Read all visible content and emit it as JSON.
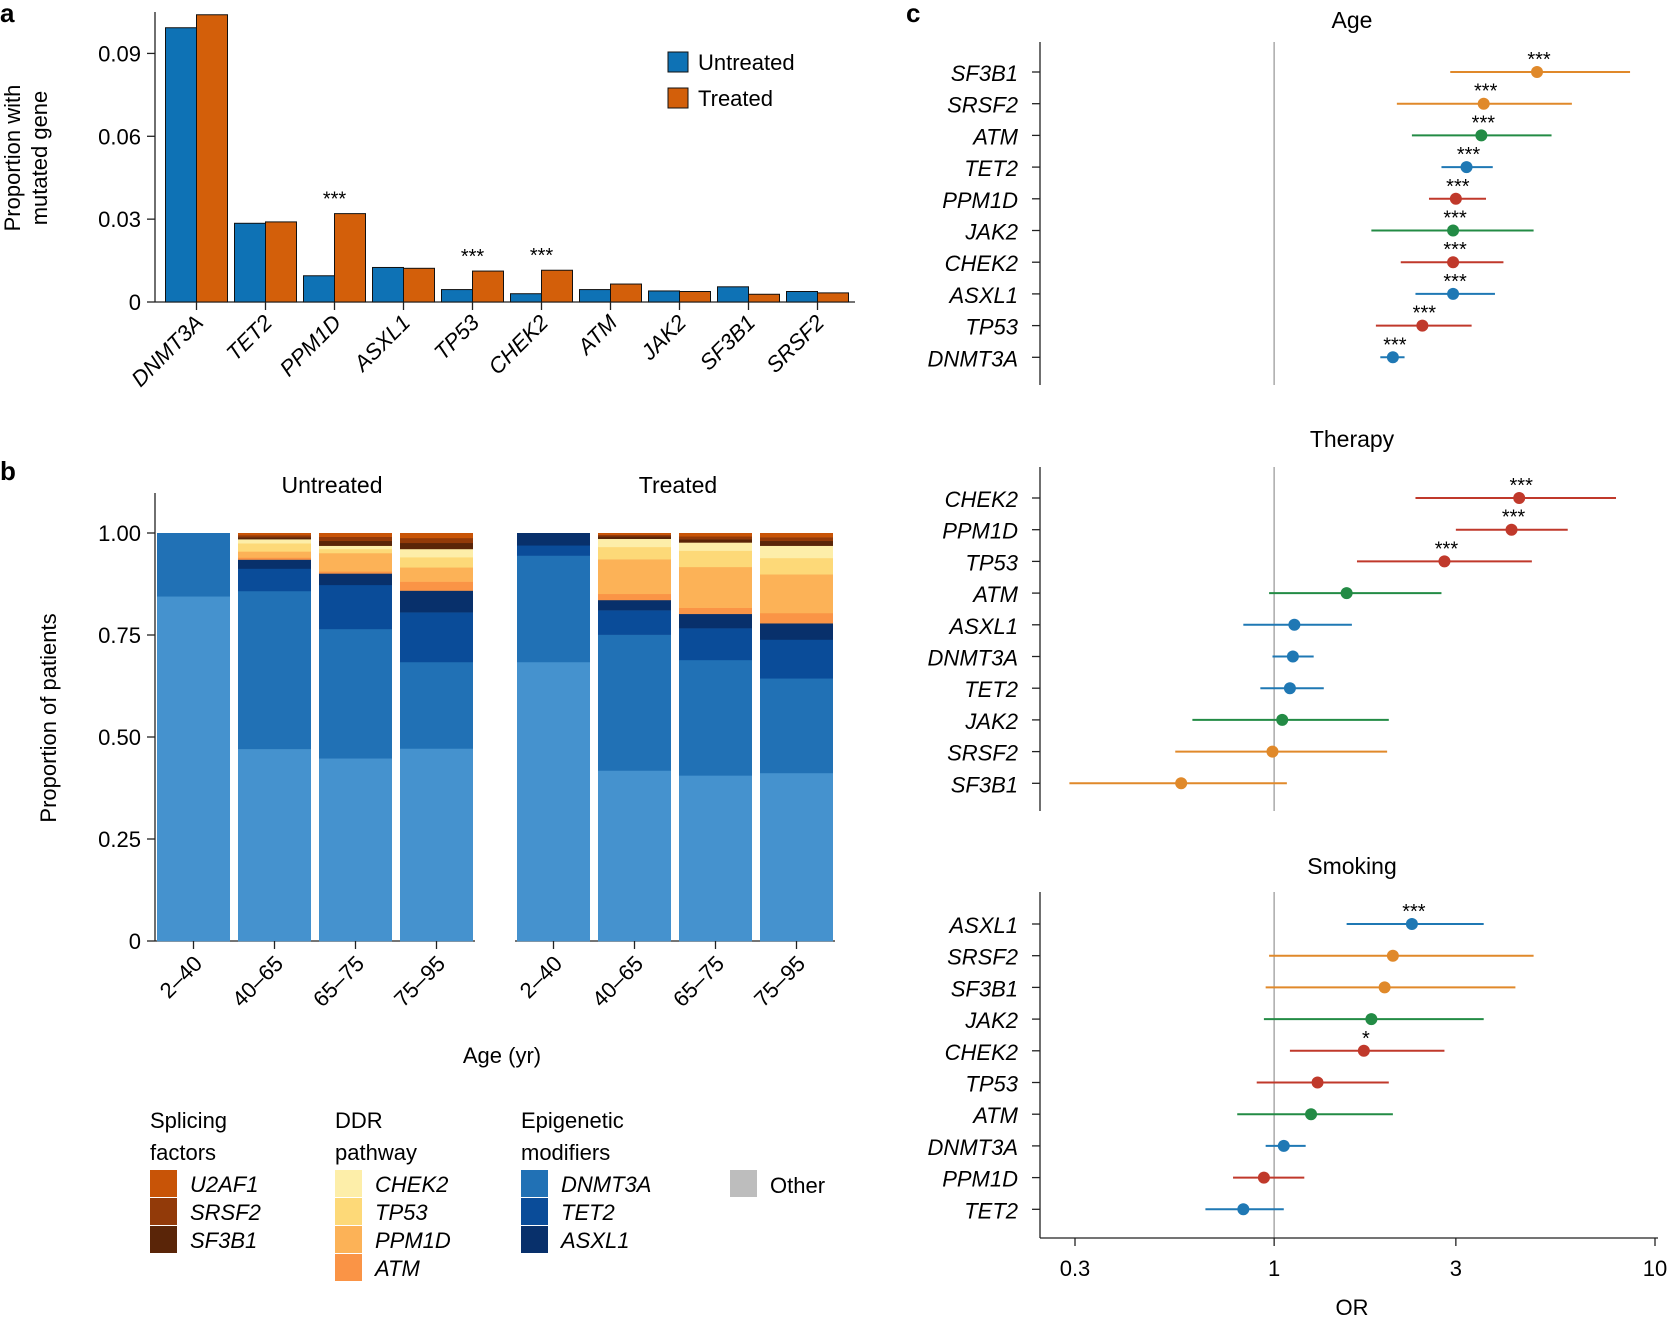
{
  "panels": {
    "a": "a",
    "b": "b",
    "c": "c"
  },
  "colors": {
    "untreated": "#0e72b5",
    "treated": "#d35f0a",
    "U2AF1": "#c85407",
    "SRSF2": "#923a09",
    "SF3B1": "#5a2508",
    "CHEK2": "#fdeea9",
    "TP53": "#fdd978",
    "PPM1D": "#fcb257",
    "ATM": "#fa9446",
    "DNMT3A": "#4592ce",
    "TET2": "#2171b5",
    "ASXL1": "#0a4c99",
    "ASXL1b": "#08306b",
    "Other": "#bdbdbd",
    "ci_orange": "#e0892a",
    "ci_green": "#238b45",
    "ci_blue": "#1f78b4",
    "ci_red": "#c0392b"
  },
  "chart_data": [
    {
      "id": "a",
      "type": "bar",
      "ylabel_lines": [
        "Proportion with",
        "mutated gene"
      ],
      "ylim": [
        0,
        0.105
      ],
      "yticks": [
        0,
        0.03,
        0.06,
        0.09
      ],
      "ytick_labels": [
        "0",
        "0.03",
        "0.06",
        "0.09"
      ],
      "categories": [
        "DNMT3A",
        "TET2",
        "PPM1D",
        "ASXL1",
        "TP53",
        "CHEK2",
        "ATM",
        "JAK2",
        "SF3B1",
        "SRSF2"
      ],
      "series": [
        {
          "name": "Untreated",
          "values": [
            0.0993,
            0.0285,
            0.0095,
            0.0125,
            0.0045,
            0.003,
            0.0045,
            0.004,
            0.0055,
            0.0038
          ]
        },
        {
          "name": "Treated",
          "values": [
            0.104,
            0.029,
            0.032,
            0.0122,
            0.0112,
            0.0115,
            0.0065,
            0.0038,
            0.0028,
            0.0033
          ]
        }
      ],
      "annotations": [
        {
          "category": "PPM1D",
          "text": "***"
        },
        {
          "category": "TP53",
          "text": "***"
        },
        {
          "category": "CHEK2",
          "text": "***"
        }
      ],
      "legend": [
        "Untreated",
        "Treated"
      ]
    },
    {
      "id": "b",
      "type": "bar",
      "stacked": true,
      "ylabel": "Proportion of patients",
      "xlabel": "Age (yr)",
      "ylim": [
        0,
        1.0
      ],
      "yticks": [
        0,
        0.25,
        0.5,
        0.75,
        1.0
      ],
      "ytick_labels": [
        "0",
        "0.25",
        "0.50",
        "0.75",
        "1.00"
      ],
      "groups": [
        "Untreated",
        "Treated"
      ],
      "categories": [
        "2–40",
        "40–65",
        "65–75",
        "75–95"
      ],
      "stack_order": [
        "DNMT3A",
        "TET2",
        "ASXL1",
        "ASXL1b",
        "ATM",
        "PPM1D",
        "TP53",
        "CHEK2",
        "SF3B1",
        "SRSF2",
        "U2AF1"
      ],
      "stacks": {
        "Untreated": [
          [
            0.845,
            0.155,
            0,
            0,
            0,
            0,
            0,
            0,
            0,
            0,
            0
          ],
          [
            0.471,
            0.387,
            0.055,
            0.022,
            0.005,
            0.015,
            0.02,
            0.01,
            0.005,
            0.005,
            0.005
          ],
          [
            0.448,
            0.317,
            0.108,
            0.028,
            0.005,
            0.045,
            0.01,
            0.008,
            0.012,
            0.01,
            0.009
          ],
          [
            0.472,
            0.212,
            0.122,
            0.053,
            0.022,
            0.035,
            0.025,
            0.02,
            0.015,
            0.012,
            0.012
          ]
        ],
        "Treated": [
          [
            0.684,
            0.261,
            0.025,
            0.03,
            0,
            0,
            0,
            0,
            0,
            0,
            0
          ],
          [
            0.418,
            0.333,
            0.06,
            0.025,
            0.015,
            0.085,
            0.03,
            0.02,
            0.006,
            0.004,
            0.004
          ],
          [
            0.406,
            0.283,
            0.078,
            0.035,
            0.015,
            0.1,
            0.04,
            0.02,
            0.008,
            0.007,
            0.008
          ],
          [
            0.412,
            0.232,
            0.095,
            0.04,
            0.025,
            0.095,
            0.04,
            0.03,
            0.012,
            0.009,
            0.01
          ]
        ]
      }
    },
    {
      "id": "c",
      "type": "scatter",
      "subtype": "forest",
      "xlabel": "OR",
      "xscale": "log",
      "xlim": [
        0.25,
        10
      ],
      "xticks": [
        0.3,
        1,
        3,
        10
      ],
      "xtick_labels": [
        "0.3",
        "1",
        "3",
        "10"
      ],
      "reference_line": 1,
      "subpanels": [
        {
          "title": "Age",
          "rows": [
            {
              "gene": "SF3B1",
              "or": 4.9,
              "lo": 2.9,
              "hi": 8.6,
              "color": "ci_orange",
              "sig": "***"
            },
            {
              "gene": "SRSF2",
              "or": 3.55,
              "lo": 2.1,
              "hi": 6.05,
              "color": "ci_orange",
              "sig": "***"
            },
            {
              "gene": "ATM",
              "or": 3.5,
              "lo": 2.3,
              "hi": 5.35,
              "color": "ci_green",
              "sig": "***"
            },
            {
              "gene": "TET2",
              "or": 3.2,
              "lo": 2.75,
              "hi": 3.75,
              "color": "ci_blue",
              "sig": "***"
            },
            {
              "gene": "PPM1D",
              "or": 3.0,
              "lo": 2.55,
              "hi": 3.6,
              "color": "ci_red",
              "sig": "***"
            },
            {
              "gene": "JAK2",
              "or": 2.95,
              "lo": 1.8,
              "hi": 4.8,
              "color": "ci_green",
              "sig": "***"
            },
            {
              "gene": "CHEK2",
              "or": 2.95,
              "lo": 2.15,
              "hi": 4.0,
              "color": "ci_red",
              "sig": "***"
            },
            {
              "gene": "ASXL1",
              "or": 2.95,
              "lo": 2.35,
              "hi": 3.8,
              "color": "ci_blue",
              "sig": "***"
            },
            {
              "gene": "TP53",
              "or": 2.45,
              "lo": 1.85,
              "hi": 3.3,
              "color": "ci_red",
              "sig": "***"
            },
            {
              "gene": "DNMT3A",
              "or": 2.05,
              "lo": 1.9,
              "hi": 2.2,
              "color": "ci_blue",
              "sig": "***"
            }
          ]
        },
        {
          "title": "Therapy",
          "rows": [
            {
              "gene": "CHEK2",
              "or": 4.4,
              "lo": 2.35,
              "hi": 7.9,
              "color": "ci_red",
              "sig": "***"
            },
            {
              "gene": "PPM1D",
              "or": 4.2,
              "lo": 3.0,
              "hi": 5.9,
              "color": "ci_red",
              "sig": "***"
            },
            {
              "gene": "TP53",
              "or": 2.8,
              "lo": 1.65,
              "hi": 4.75,
              "color": "ci_red",
              "sig": "***"
            },
            {
              "gene": "ATM",
              "or": 1.55,
              "lo": 0.97,
              "hi": 2.75,
              "color": "ci_green",
              "sig": ""
            },
            {
              "gene": "ASXL1",
              "or": 1.13,
              "lo": 0.83,
              "hi": 1.6,
              "color": "ci_blue",
              "sig": ""
            },
            {
              "gene": "DNMT3A",
              "or": 1.12,
              "lo": 0.99,
              "hi": 1.27,
              "color": "ci_blue",
              "sig": ""
            },
            {
              "gene": "TET2",
              "or": 1.1,
              "lo": 0.92,
              "hi": 1.35,
              "color": "ci_blue",
              "sig": ""
            },
            {
              "gene": "JAK2",
              "or": 1.05,
              "lo": 0.61,
              "hi": 2.0,
              "color": "ci_green",
              "sig": ""
            },
            {
              "gene": "SRSF2",
              "or": 0.99,
              "lo": 0.55,
              "hi": 1.98,
              "color": "ci_orange",
              "sig": ""
            },
            {
              "gene": "SF3B1",
              "or": 0.57,
              "lo": 0.29,
              "hi": 1.08,
              "color": "ci_orange",
              "sig": ""
            }
          ]
        },
        {
          "title": "Smoking",
          "rows": [
            {
              "gene": "ASXL1",
              "or": 2.3,
              "lo": 1.55,
              "hi": 3.55,
              "color": "ci_blue",
              "sig": "***"
            },
            {
              "gene": "SRSF2",
              "or": 2.05,
              "lo": 0.97,
              "hi": 4.8,
              "color": "ci_orange",
              "sig": ""
            },
            {
              "gene": "SF3B1",
              "or": 1.95,
              "lo": 0.95,
              "hi": 4.3,
              "color": "ci_orange",
              "sig": ""
            },
            {
              "gene": "JAK2",
              "or": 1.8,
              "lo": 0.94,
              "hi": 3.55,
              "color": "ci_green",
              "sig": ""
            },
            {
              "gene": "CHEK2",
              "or": 1.72,
              "lo": 1.1,
              "hi": 2.8,
              "color": "ci_red",
              "sig": "*"
            },
            {
              "gene": "TP53",
              "or": 1.3,
              "lo": 0.9,
              "hi": 2.0,
              "color": "ci_red",
              "sig": ""
            },
            {
              "gene": "ATM",
              "or": 1.25,
              "lo": 0.8,
              "hi": 2.05,
              "color": "ci_green",
              "sig": ""
            },
            {
              "gene": "DNMT3A",
              "or": 1.06,
              "lo": 0.95,
              "hi": 1.21,
              "color": "ci_blue",
              "sig": ""
            },
            {
              "gene": "PPM1D",
              "or": 0.94,
              "lo": 0.78,
              "hi": 1.2,
              "color": "ci_red",
              "sig": ""
            },
            {
              "gene": "TET2",
              "or": 0.83,
              "lo": 0.66,
              "hi": 1.06,
              "color": "ci_blue",
              "sig": ""
            }
          ]
        }
      ]
    }
  ],
  "legend_b": {
    "groups": [
      {
        "title_lines": [
          "Splicing",
          "factors"
        ],
        "items": [
          {
            "label": "U2AF1",
            "color": "U2AF1"
          },
          {
            "label": "SRSF2",
            "color": "SRSF2"
          },
          {
            "label": "SF3B1",
            "color": "SF3B1"
          }
        ]
      },
      {
        "title_lines": [
          "DDR",
          "pathway"
        ],
        "items": [
          {
            "label": "CHEK2",
            "color": "CHEK2"
          },
          {
            "label": "TP53",
            "color": "TP53"
          },
          {
            "label": "PPM1D",
            "color": "PPM1D"
          },
          {
            "label": "ATM",
            "color": "ATM"
          }
        ]
      },
      {
        "title_lines": [
          "Epigenetic",
          "modifiers"
        ],
        "items": [
          {
            "label": "DNMT3A",
            "color": "TET2"
          },
          {
            "label": "TET2",
            "color": "ASXL1"
          },
          {
            "label": "ASXL1",
            "color": "ASXL1b"
          }
        ]
      }
    ],
    "other": {
      "label": "Other",
      "color": "Other"
    }
  }
}
